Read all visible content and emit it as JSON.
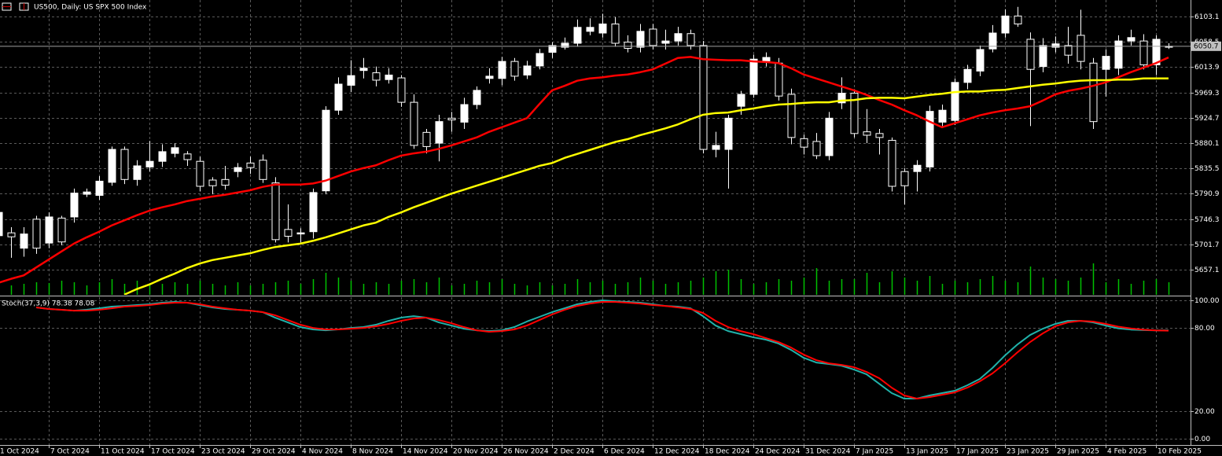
{
  "chart_data": [
    {
      "type": "candlestick",
      "title": "US500, Daily:  US SPX 500 Index",
      "categories": [
        "1 Oct 2024",
        null,
        null,
        null,
        "7 Oct 2024",
        null,
        null,
        null,
        "11 Oct 2024",
        null,
        null,
        null,
        "17 Oct 2024",
        null,
        null,
        null,
        "23 Oct 2024",
        null,
        null,
        null,
        "29 Oct 2024",
        null,
        null,
        null,
        "4 Nov 2024",
        null,
        null,
        null,
        "8 Nov 2024",
        null,
        null,
        null,
        "14 Nov 2024",
        null,
        null,
        null,
        "20 Nov 2024",
        null,
        null,
        null,
        "26 Nov 2024",
        null,
        null,
        null,
        "2 Dec 2024",
        null,
        null,
        null,
        "6 Dec 2024",
        null,
        null,
        null,
        "12 Dec 2024",
        null,
        null,
        null,
        "18 Dec 2024",
        null,
        null,
        null,
        "24 Dec 2024",
        null,
        null,
        null,
        "31 Dec 2024",
        null,
        null,
        null,
        "7 Jan 2025",
        null,
        null,
        null,
        "13 Jan 2025",
        null,
        null,
        null,
        "17 Jan 2025",
        null,
        null,
        null,
        "23 Jan 2025",
        null,
        null,
        null,
        "29 Jan 2025",
        null,
        null,
        null,
        "4 Feb 2025",
        null,
        null,
        null,
        "10 Feb 2025",
        null
      ],
      "open": [
        5717,
        5722,
        5695,
        5746,
        5704,
        5748,
        5750,
        5790,
        5788,
        5811,
        5869,
        5816,
        5838,
        5848,
        5862,
        5861,
        5848,
        5815,
        5816,
        5830,
        5845,
        5850,
        5810,
        5728,
        5720,
        5724,
        5796,
        5938,
        5982,
        6008,
        6004,
        5992,
        5995,
        5952,
        5899,
        5880,
        5924,
        5917,
        5948,
        5994,
        5994,
        6024,
        6000,
        6016,
        6040,
        6049,
        6056,
        6077,
        6074,
        6090,
        6058,
        6049,
        6081,
        6056,
        6060,
        6073,
        6052,
        5869,
        5869,
        5945,
        5966,
        6025,
        6021,
        5966,
        5888,
        5883,
        5858,
        5951,
        5968,
        5900,
        5897,
        5885,
        5830,
        5830,
        5838,
        5917,
        5920,
        5987,
        6007,
        6046,
        6074,
        6104,
        6063,
        6015,
        6049,
        6052,
        6070,
        6021,
        6010,
        6012,
        6060,
        6060,
        6018,
        6049
      ],
      "high": [
        5762,
        5732,
        5732,
        5752,
        5758,
        5752,
        5800,
        5800,
        5822,
        5874,
        5874,
        5850,
        5884,
        5878,
        5880,
        5866,
        5856,
        5820,
        5840,
        5845,
        5856,
        5860,
        5820,
        5772,
        5730,
        5800,
        5945,
        5996,
        6026,
        6030,
        6015,
        6012,
        6000,
        5966,
        5905,
        5930,
        5935,
        5960,
        5980,
        6012,
        6032,
        6030,
        6025,
        6046,
        6058,
        6066,
        6098,
        6100,
        6108,
        6102,
        6070,
        6090,
        6090,
        6080,
        6085,
        6080,
        6060,
        5900,
        5930,
        5972,
        6036,
        6040,
        6030,
        5976,
        5895,
        5898,
        5935,
        5996,
        5975,
        5940,
        5905,
        5890,
        5836,
        5850,
        5946,
        5948,
        5994,
        6018,
        6052,
        6088,
        6116,
        6120,
        6075,
        6065,
        6068,
        6085,
        6115,
        6030,
        6045,
        6070,
        6080,
        6072,
        6070,
        6056
      ],
      "low": [
        5710,
        5678,
        5680,
        5685,
        5695,
        5700,
        5740,
        5785,
        5780,
        5805,
        5808,
        5805,
        5830,
        5838,
        5855,
        5840,
        5795,
        5790,
        5798,
        5820,
        5826,
        5810,
        5705,
        5705,
        5705,
        5712,
        5790,
        5930,
        5970,
        5994,
        5980,
        5985,
        5944,
        5870,
        5862,
        5848,
        5900,
        5905,
        5940,
        5985,
        5982,
        5990,
        5993,
        6010,
        6030,
        6045,
        6050,
        6070,
        6066,
        6050,
        6040,
        6040,
        6045,
        6045,
        6052,
        6045,
        5862,
        5855,
        5800,
        5930,
        5960,
        6015,
        5955,
        5878,
        5860,
        5852,
        5850,
        5940,
        5890,
        5880,
        5860,
        5795,
        5772,
        5795,
        5830,
        5910,
        5912,
        5975,
        5998,
        6040,
        6066,
        6085,
        5910,
        6005,
        6040,
        6020,
        6010,
        5905,
        5962,
        6000,
        6052,
        6010,
        6000,
        6046
      ],
      "close": [
        5758,
        5715,
        5720,
        5695,
        5750,
        5706,
        5792,
        5794,
        5813,
        5869,
        5816,
        5840,
        5848,
        5865,
        5872,
        5851,
        5804,
        5805,
        5806,
        5837,
        5837,
        5816,
        5710,
        5716,
        5722,
        5793,
        5938,
        5984,
        5999,
        6012,
        5991,
        6000,
        5952,
        5876,
        5874,
        5918,
        5921,
        5948,
        5973,
        5998,
        6024,
        5998,
        6016,
        6038,
        6052,
        6056,
        6084,
        6084,
        6090,
        6056,
        6047,
        6077,
        6052,
        6060,
        6073,
        6052,
        5869,
        5876,
        5924,
        5966,
        6028,
        6031,
        5963,
        5890,
        5873,
        5858,
        5924,
        5968,
        5897,
        5894,
        5890,
        5804,
        5805,
        5841,
        5936,
        5938,
        5987,
        6010,
        6045,
        6074,
        6104,
        6090,
        6010,
        6052,
        6055,
        6035,
        6024,
        5918,
        6033,
        6060,
        6066,
        6018,
        6063,
        6050.7
      ],
      "up_color": "#ffffff",
      "down_color": "#000000",
      "wick_color": "#ffffff",
      "overlays": [
        {
          "color": "#ff0000",
          "values": [
            5634,
            5641,
            5647,
            5661,
            5675,
            5689,
            5703,
            5714,
            5724,
            5735,
            5744,
            5753,
            5761,
            5767,
            5772,
            5778,
            5782,
            5786,
            5789,
            5793,
            5797,
            5803,
            5807,
            5807,
            5807,
            5809,
            5814,
            5822,
            5830,
            5836,
            5841,
            5850,
            5858,
            5862,
            5865,
            5870,
            5876,
            5883,
            5890,
            5900,
            5908,
            5916,
            5924,
            5949,
            5973,
            5981,
            5990,
            5994,
            5996,
            5999,
            6001,
            6005,
            6010,
            6020,
            6030,
            6032,
            6028,
            6027,
            6026,
            6026,
            6024,
            6023,
            6021,
            6012,
            6001,
            5994,
            5987,
            5980,
            5973,
            5965,
            5956,
            5948,
            5938,
            5929,
            5918,
            5908,
            5915,
            5922,
            5929,
            5934,
            5938,
            5941,
            5945,
            5955,
            5966,
            5972,
            5976,
            5981,
            5987,
            5996,
            6005,
            6013,
            6021,
            6031
          ]
        },
        {
          "color": "#ffff00",
          "values": [
            null,
            null,
            null,
            null,
            null,
            null,
            null,
            null,
            null,
            null,
            5613,
            5623,
            5631,
            5641,
            5650,
            5660,
            5668,
            5674,
            5678,
            5682,
            5686,
            5692,
            5697,
            5700,
            5703,
            5708,
            5714,
            5721,
            5728,
            5735,
            5740,
            5750,
            5758,
            5767,
            5775,
            5783,
            5791,
            5798,
            5805,
            5812,
            5819,
            5826,
            5833,
            5840,
            5845,
            5854,
            5861,
            5868,
            5875,
            5882,
            5887,
            5894,
            5900,
            5906,
            5913,
            5922,
            5930,
            5933,
            5934,
            5938,
            5941,
            5945,
            5948,
            5949,
            5951,
            5952,
            5952,
            5955,
            5956,
            5959,
            5960,
            5960,
            5959,
            5962,
            5965,
            5967,
            5970,
            5971,
            5971,
            5973,
            5974,
            5977,
            5980,
            5983,
            5985,
            5988,
            5990,
            5991,
            5991,
            5992,
            5992,
            5994,
            5994,
            5994
          ]
        }
      ],
      "volume": {
        "color": "#00c000",
        "values": [
          18,
          12,
          14,
          16,
          15,
          18,
          16,
          12,
          16,
          20,
          14,
          18,
          12,
          14,
          16,
          14,
          18,
          14,
          12,
          16,
          12,
          14,
          16,
          18,
          14,
          20,
          28,
          22,
          18,
          14,
          16,
          14,
          18,
          20,
          16,
          22,
          12,
          14,
          18,
          16,
          20,
          14,
          12,
          16,
          12,
          14,
          20,
          16,
          18,
          14,
          16,
          22,
          18,
          14,
          16,
          18,
          22,
          30,
          32,
          20,
          14,
          16,
          20,
          18,
          22,
          34,
          18,
          20,
          20,
          28,
          16,
          30,
          22,
          18,
          24,
          14,
          18,
          16,
          20,
          24,
          18,
          16,
          36,
          22,
          20,
          18,
          22,
          40,
          16,
          20,
          14,
          18,
          20,
          16
        ]
      },
      "last_price": 6050.7,
      "ylim": [
        5612.8,
        6132.2
      ],
      "yticks": [
        6103.1,
        6058.5,
        6013.9,
        5969.3,
        5924.7,
        5880.1,
        5835.5,
        5790.9,
        5746.3,
        5701.7,
        5657.1
      ],
      "grid": true
    },
    {
      "type": "line",
      "title": "Stoch(37,3,9) 78.38 78.08",
      "series": [
        {
          "color": "#20b2aa",
          "values": [
            null,
            null,
            null,
            94.9,
            93.8,
            93.2,
            92.6,
            93.2,
            94.3,
            95.5,
            96.0,
            96.6,
            97.2,
            98.3,
            98.9,
            98.3,
            96.6,
            94.9,
            93.8,
            93.2,
            92.6,
            91.5,
            87.5,
            84.1,
            80.7,
            79.0,
            78.4,
            79.0,
            80.1,
            80.7,
            82.4,
            85.2,
            87.5,
            88.6,
            87.5,
            84.1,
            81.8,
            79.5,
            78.4,
            77.8,
            78.4,
            80.7,
            84.7,
            88.1,
            91.5,
            94.3,
            97.2,
            98.9,
            100,
            99.4,
            98.9,
            98.3,
            97.2,
            96.0,
            95.5,
            94.3,
            88.6,
            81.8,
            77.8,
            75.6,
            73.3,
            71.6,
            68.8,
            64.2,
            58.5,
            55.1,
            54.0,
            52.8,
            50.0,
            46.6,
            39.8,
            33.0,
            29.0,
            29.0,
            31.3,
            33.0,
            34.7,
            38.6,
            43.2,
            51.1,
            60.2,
            68.2,
            75.0,
            79.5,
            83.0,
            85.2,
            85.2,
            84.1,
            81.8,
            79.8,
            78.9,
            78.5,
            78.3,
            78.38
          ]
        },
        {
          "color": "#ff0000",
          "values": [
            null,
            null,
            null,
            94.9,
            93.8,
            93.2,
            92.6,
            92.6,
            93.2,
            94.3,
            95.5,
            96.0,
            96.6,
            97.7,
            98.3,
            98.3,
            97.2,
            95.5,
            94.3,
            93.2,
            92.6,
            91.5,
            89.2,
            85.8,
            82.4,
            80.1,
            79.0,
            79.0,
            79.5,
            80.1,
            81.3,
            83.0,
            85.2,
            86.9,
            87.5,
            85.8,
            83.5,
            80.7,
            78.4,
            77.3,
            77.8,
            79.0,
            81.8,
            85.8,
            89.8,
            93.2,
            96.0,
            97.7,
            98.9,
            98.9,
            98.3,
            97.7,
            96.6,
            96.0,
            94.9,
            93.8,
            90.9,
            85.2,
            80.7,
            77.8,
            75.6,
            72.7,
            69.9,
            65.9,
            60.8,
            56.8,
            54.5,
            53.4,
            51.7,
            48.3,
            43.8,
            36.9,
            31.3,
            29.0,
            30.1,
            31.8,
            33.5,
            36.9,
            41.5,
            47.2,
            54.5,
            62.5,
            69.9,
            76.1,
            81.3,
            84.1,
            85.2,
            84.7,
            83.0,
            81.0,
            79.7,
            78.8,
            78.3,
            78.08
          ]
        }
      ],
      "ylim": [
        -4.5,
        102.3
      ],
      "yticks": [
        {
          "value": 100,
          "label": "100.00"
        },
        {
          "value": 80,
          "label": "80.00"
        },
        {
          "value": 20,
          "label": "20.00"
        },
        {
          "value": 0,
          "label": "0.00"
        }
      ],
      "grid": true
    }
  ]
}
